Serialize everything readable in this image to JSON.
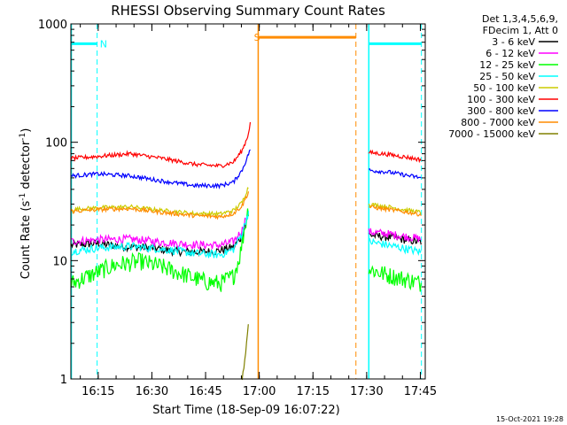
{
  "chart_data": {
    "type": "line",
    "title": "RHESSI Observing Summary Count Rates",
    "xlabel": "Start Time (18-Sep-09 16:07:22)",
    "ylabel": "Count Rate (s",
    "ylabel_sup": "-1",
    "ylabel_mid": " detector",
    "ylabel_sup2": "-1",
    "ylabel_end": ")",
    "yscale": "log",
    "ylim": [
      1,
      1000
    ],
    "xlim": [
      16.1228,
      17.7728
    ],
    "y_ticks": [
      {
        "v": 1,
        "label": "1"
      },
      {
        "v": 10,
        "label": "10"
      },
      {
        "v": 100,
        "label": "100"
      },
      {
        "v": 1000,
        "label": "1000"
      }
    ],
    "x_ticks": [
      {
        "v": 16.25,
        "label": "16:15"
      },
      {
        "v": 16.5,
        "label": "16:30"
      },
      {
        "v": 16.75,
        "label": "16:45"
      },
      {
        "v": 17.0,
        "label": "17:00"
      },
      {
        "v": 17.25,
        "label": "17:15"
      },
      {
        "v": 17.5,
        "label": "17:30"
      },
      {
        "v": 17.75,
        "label": "17:45"
      }
    ],
    "legend_header": [
      "Det 1,3,4,5,6,9,",
      "FDecim 1, Att 0"
    ],
    "footer": "15-Oct-2021 19:28",
    "series": [
      {
        "name": "3 - 6 keV",
        "color": "#000000",
        "seg1": [
          [
            16.125,
            13.5
          ],
          [
            16.25,
            14.0
          ],
          [
            16.33,
            13.3
          ],
          [
            16.5,
            12.8
          ],
          [
            16.6,
            12.0
          ],
          [
            16.7,
            11.8
          ],
          [
            16.8,
            12.0
          ],
          [
            16.88,
            13.0
          ],
          [
            16.92,
            16.0
          ],
          [
            16.94,
            22.0
          ]
        ],
        "seg2": [
          [
            17.51,
            16.5
          ],
          [
            17.6,
            15.8
          ],
          [
            17.7,
            14.8
          ],
          [
            17.755,
            14.3
          ]
        ]
      },
      {
        "name": "6 - 12 keV",
        "color": "#ff00ff",
        "seg1": [
          [
            16.125,
            14.5
          ],
          [
            16.25,
            15.0
          ],
          [
            16.4,
            15.2
          ],
          [
            16.55,
            14.3
          ],
          [
            16.7,
            13.6
          ],
          [
            16.82,
            13.5
          ],
          [
            16.88,
            14.5
          ],
          [
            16.92,
            18.0
          ],
          [
            16.94,
            24.0
          ]
        ],
        "seg2": [
          [
            17.51,
            17.5
          ],
          [
            17.6,
            16.8
          ],
          [
            17.7,
            15.8
          ],
          [
            17.755,
            15.2
          ]
        ]
      },
      {
        "name": "12 - 25 keV",
        "color": "#00ff00",
        "seg1": [
          [
            16.125,
            6.4
          ],
          [
            16.25,
            8.0
          ],
          [
            16.33,
            9.2
          ],
          [
            16.45,
            9.8
          ],
          [
            16.55,
            8.8
          ],
          [
            16.65,
            7.6
          ],
          [
            16.75,
            6.6
          ],
          [
            16.82,
            6.4
          ],
          [
            16.88,
            7.4
          ],
          [
            16.91,
            11.0
          ],
          [
            16.93,
            18.0
          ],
          [
            16.95,
            28.0
          ]
        ],
        "seg2": [
          [
            17.51,
            8.5
          ],
          [
            17.6,
            7.5
          ],
          [
            17.7,
            6.8
          ],
          [
            17.755,
            6.4
          ]
        ]
      },
      {
        "name": "25 - 50 keV",
        "color": "#00ffff",
        "seg1": [
          [
            16.125,
            12.0
          ],
          [
            16.25,
            12.8
          ],
          [
            16.4,
            13.2
          ],
          [
            16.55,
            12.5
          ],
          [
            16.7,
            11.5
          ],
          [
            16.82,
            11.2
          ],
          [
            16.88,
            12.5
          ],
          [
            16.92,
            17.0
          ],
          [
            16.95,
            26.0
          ]
        ],
        "seg2": [
          [
            17.51,
            14.5
          ],
          [
            17.6,
            13.5
          ],
          [
            17.7,
            12.4
          ],
          [
            17.755,
            11.8
          ]
        ]
      },
      {
        "name": "50 - 100 keV",
        "color": "#cccc00",
        "seg1": [
          [
            16.125,
            27.0
          ],
          [
            16.25,
            28.0
          ],
          [
            16.4,
            28.5
          ],
          [
            16.55,
            26.5
          ],
          [
            16.7,
            25.0
          ],
          [
            16.82,
            24.8
          ],
          [
            16.88,
            26.5
          ],
          [
            16.92,
            31.0
          ],
          [
            16.95,
            42.0
          ]
        ],
        "seg2": [
          [
            17.51,
            30.0
          ],
          [
            17.6,
            28.5
          ],
          [
            17.7,
            26.5
          ],
          [
            17.755,
            25.5
          ]
        ]
      },
      {
        "name": "100 - 300 keV",
        "color": "#ff0000",
        "seg1": [
          [
            16.125,
            73.0
          ],
          [
            16.25,
            76.0
          ],
          [
            16.4,
            80.0
          ],
          [
            16.55,
            73.0
          ],
          [
            16.7,
            65.0
          ],
          [
            16.82,
            63.0
          ],
          [
            16.88,
            68.0
          ],
          [
            16.92,
            85.0
          ],
          [
            16.945,
            110.0
          ],
          [
            16.96,
            150.0
          ]
        ],
        "seg2": [
          [
            17.51,
            82.0
          ],
          [
            17.6,
            79.0
          ],
          [
            17.7,
            74.0
          ],
          [
            17.755,
            71.0
          ]
        ]
      },
      {
        "name": "300 - 800 keV",
        "color": "#0000ff",
        "seg1": [
          [
            16.125,
            52.0
          ],
          [
            16.25,
            54.0
          ],
          [
            16.4,
            52.0
          ],
          [
            16.55,
            47.0
          ],
          [
            16.7,
            43.0
          ],
          [
            16.82,
            43.0
          ],
          [
            16.88,
            46.0
          ],
          [
            16.92,
            58.0
          ],
          [
            16.945,
            75.0
          ],
          [
            16.96,
            90.0
          ]
        ],
        "seg2": [
          [
            17.51,
            58.0
          ],
          [
            17.6,
            56.0
          ],
          [
            17.7,
            52.0
          ],
          [
            17.755,
            50.0
          ]
        ]
      },
      {
        "name": "800 - 7000 keV",
        "color": "#ff8c00",
        "seg1": [
          [
            16.125,
            26.0
          ],
          [
            16.25,
            27.0
          ],
          [
            16.4,
            27.5
          ],
          [
            16.55,
            25.5
          ],
          [
            16.7,
            24.0
          ],
          [
            16.82,
            23.5
          ],
          [
            16.88,
            25.0
          ],
          [
            16.92,
            29.0
          ],
          [
            16.95,
            38.0
          ]
        ],
        "seg2": [
          [
            17.51,
            28.5
          ],
          [
            17.6,
            27.0
          ],
          [
            17.7,
            25.5
          ],
          [
            17.755,
            24.5
          ]
        ]
      },
      {
        "name": "7000 - 15000 keV",
        "color": "#808000",
        "seg1": [
          [
            16.92,
            1.0
          ],
          [
            16.93,
            1.3
          ],
          [
            16.94,
            2.0
          ],
          [
            16.95,
            3.0
          ]
        ],
        "seg2": []
      }
    ],
    "flags": {
      "saa_level": 680,
      "saa_color": "#00ffff",
      "saa_bars": [
        [
          16.125,
          16.245
        ],
        [
          17.51,
          17.755
        ]
      ],
      "cyan_lines": [
        16.125,
        17.51
      ],
      "cyan_dashed": [
        16.245,
        17.755
      ],
      "night_label": "N",
      "night_label_x": 16.258,
      "sun_level": 770,
      "sun_color": "#ff8c00",
      "sun_bar": [
        16.995,
        17.45
      ],
      "orange_solid": 16.995,
      "orange_dashed": 17.45,
      "sun_label": "S",
      "sun_label_x": 16.975
    }
  }
}
